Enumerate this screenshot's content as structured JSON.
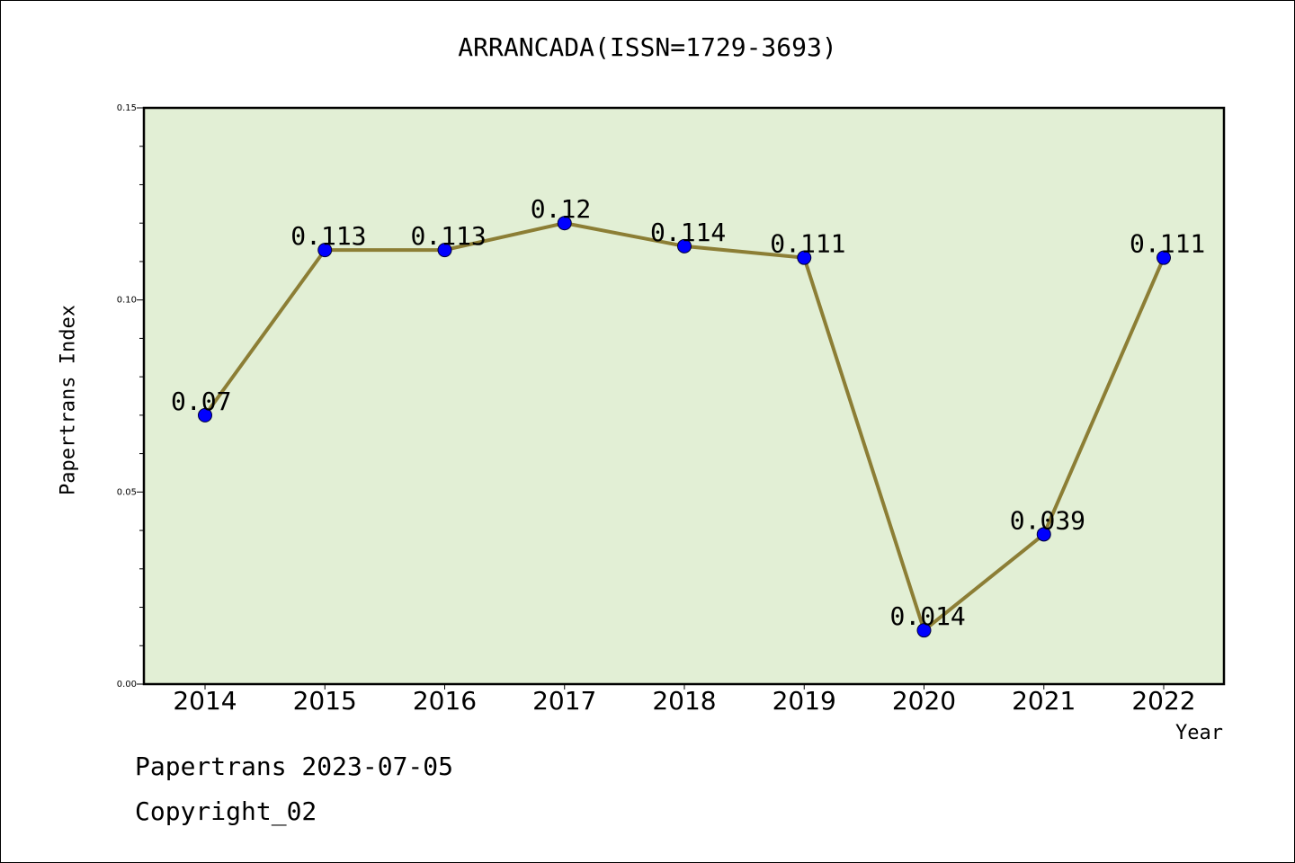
{
  "title": "ARRANCADA(ISSN=1729-3693)",
  "footer": {
    "line1": "Papertrans 2023-07-05",
    "line2": "Copyright_02"
  },
  "colors": {
    "plot_background": "#e2efd5",
    "line": "#8c7e35",
    "marker": "#0000ff"
  },
  "chart_data": {
    "type": "line",
    "title": "ARRANCADA(ISSN=1729-3693)",
    "xlabel": "Year",
    "ylabel": "Papertrans Index",
    "categories": [
      "2014",
      "2015",
      "2016",
      "2017",
      "2018",
      "2019",
      "2020",
      "2021",
      "2022"
    ],
    "values": [
      0.07,
      0.113,
      0.113,
      0.12,
      0.114,
      0.111,
      0.014,
      0.039,
      0.111
    ],
    "data_labels": [
      "0.07",
      "0.113",
      "0.113",
      "0.12",
      "0.114",
      "0.111",
      "0.014",
      "0.039",
      "0.111"
    ],
    "ylim": [
      0,
      0.15
    ],
    "yticks": [
      "0.00",
      "0.05",
      "0.10",
      "0.15"
    ],
    "grid": false,
    "legend": "none"
  }
}
